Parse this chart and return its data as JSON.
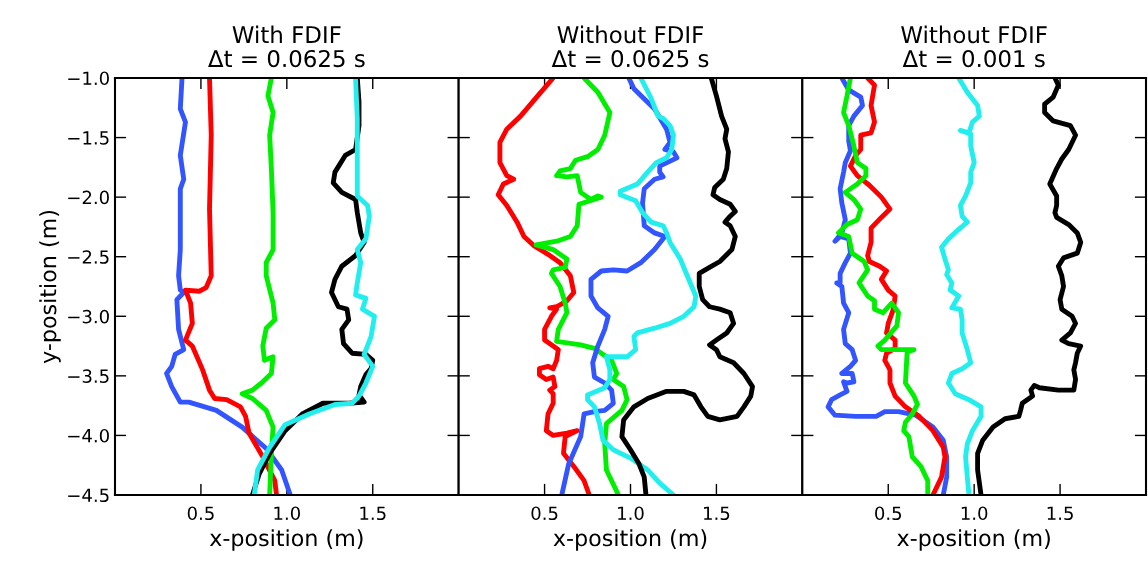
{
  "chart_data": [
    {
      "type": "line",
      "title": "With FDIF\nΔt = 0.0625 s",
      "xlabel": "x-position (m)",
      "ylabel": "y-position (m)",
      "xlim": [
        0,
        2
      ],
      "ylim": [
        -4.5,
        -1.0
      ],
      "xticks": [
        {
          "value": 0.5,
          "label": "0.5"
        },
        {
          "value": 1.0,
          "label": "1.0"
        },
        {
          "value": 1.5,
          "label": "1.5"
        }
      ],
      "yticks": [
        {
          "value": -1.0,
          "label": "−1.0"
        },
        {
          "value": -1.5,
          "label": "−1.5"
        },
        {
          "value": -2.0,
          "label": "−2.0"
        },
        {
          "value": -2.5,
          "label": "−2.5"
        },
        {
          "value": -3.0,
          "label": "−3.0"
        },
        {
          "value": -3.5,
          "label": "−3.5"
        },
        {
          "value": -4.0,
          "label": "−4.0"
        },
        {
          "value": -4.5,
          "label": "−4.5"
        }
      ],
      "series": [
        {
          "color": "#3355ff",
          "x": [
            0.39,
            0.38,
            0.41,
            0.38,
            0.4,
            0.38,
            0.38,
            0.38,
            0.37,
            0.38,
            0.4,
            0.36,
            0.37,
            0.4,
            0.35,
            0.33,
            0.3,
            0.33,
            0.38,
            0.43,
            0.59,
            0.74,
            0.88,
            0.97,
            1.02
          ],
          "values": [
            -1.0,
            -1.26,
            -1.37,
            -1.65,
            -1.85,
            -1.93,
            -2.16,
            -2.44,
            -2.66,
            -2.78,
            -2.8,
            -2.86,
            -3.11,
            -3.28,
            -3.32,
            -3.42,
            -3.48,
            -3.59,
            -3.72,
            -3.72,
            -3.79,
            -3.93,
            -4.11,
            -4.29,
            -4.5
          ]
        },
        {
          "color": "#ff0000",
          "x": [
            0.55,
            0.56,
            0.55,
            0.56,
            0.53,
            0.49,
            0.41,
            0.44,
            0.45,
            0.41,
            0.45,
            0.51,
            0.55,
            0.58,
            0.65,
            0.73,
            0.76,
            0.78,
            0.86,
            0.93,
            0.94
          ],
          "values": [
            -1.0,
            -1.48,
            -2.1,
            -2.66,
            -2.76,
            -2.79,
            -2.78,
            -2.89,
            -3.06,
            -3.2,
            -3.25,
            -3.45,
            -3.62,
            -3.69,
            -3.7,
            -3.76,
            -3.84,
            -3.98,
            -4.18,
            -4.38,
            -4.5
          ]
        },
        {
          "color": "#00ee00",
          "x": [
            0.91,
            0.89,
            0.92,
            0.9,
            0.91,
            0.92,
            0.92,
            0.88,
            0.88,
            0.92,
            0.93,
            0.88,
            0.86,
            0.87,
            0.92,
            0.91,
            0.86,
            0.8,
            0.74,
            0.8,
            0.88,
            0.92,
            0.91,
            0.9
          ],
          "values": [
            -1.0,
            -1.15,
            -1.29,
            -1.48,
            -1.76,
            -2.13,
            -2.44,
            -2.55,
            -2.66,
            -2.89,
            -3.03,
            -3.1,
            -3.25,
            -3.37,
            -3.34,
            -3.48,
            -3.55,
            -3.62,
            -3.65,
            -3.69,
            -3.79,
            -3.93,
            -4.15,
            -4.5
          ]
        },
        {
          "color": "#000000",
          "x": [
            1.41,
            1.42,
            1.42,
            1.4,
            1.34,
            1.28,
            1.27,
            1.32,
            1.4,
            1.41,
            1.43,
            1.45,
            1.4,
            1.32,
            1.28,
            1.26,
            1.3,
            1.35,
            1.36,
            1.32,
            1.33,
            1.38,
            1.46,
            1.5,
            1.49,
            1.46,
            1.43,
            1.42,
            1.45,
            1.36,
            1.21,
            1.09,
            0.99,
            0.9,
            0.84,
            0.8
          ],
          "values": [
            -1.0,
            -1.2,
            -1.4,
            -1.6,
            -1.65,
            -1.79,
            -1.88,
            -1.96,
            -2.02,
            -2.13,
            -2.3,
            -2.38,
            -2.49,
            -2.58,
            -2.69,
            -2.8,
            -2.92,
            -2.94,
            -3.03,
            -3.11,
            -3.23,
            -3.31,
            -3.32,
            -3.37,
            -3.44,
            -3.49,
            -3.59,
            -3.66,
            -3.72,
            -3.73,
            -3.73,
            -3.82,
            -3.96,
            -4.15,
            -4.32,
            -4.5
          ]
        },
        {
          "color": "#22eeee",
          "x": [
            1.4,
            1.41,
            1.41,
            1.41,
            1.47,
            1.48,
            1.46,
            1.41,
            1.43,
            1.41,
            1.4,
            1.46,
            1.44,
            1.51,
            1.49,
            1.45,
            1.5,
            1.46,
            1.42,
            1.38,
            1.28,
            1.13,
            0.99,
            0.9,
            0.83,
            0.81
          ],
          "values": [
            -1.0,
            -1.34,
            -1.76,
            -1.99,
            -2.07,
            -2.16,
            -2.35,
            -2.44,
            -2.55,
            -2.72,
            -2.82,
            -2.85,
            -2.94,
            -3.0,
            -3.17,
            -3.32,
            -3.42,
            -3.56,
            -3.67,
            -3.73,
            -3.74,
            -3.82,
            -3.91,
            -4.1,
            -4.29,
            -4.5
          ]
        }
      ]
    },
    {
      "type": "line",
      "title": "Without FDIF\nΔt = 0.0625 s",
      "xlabel": "x-position (m)",
      "xlim": [
        0,
        2
      ],
      "ylim": [
        -4.5,
        -1.0
      ],
      "tick_labels": "x",
      "xticks": [
        {
          "value": 0.5,
          "label": "0.5"
        },
        {
          "value": 1.0,
          "label": "1.0"
        },
        {
          "value": 1.5,
          "label": "1.5"
        }
      ],
      "yticks": [
        {
          "value": -1.0,
          "label": null
        },
        {
          "value": -1.5,
          "label": null
        },
        {
          "value": -2.0,
          "label": null
        },
        {
          "value": -2.5,
          "label": null
        },
        {
          "value": -3.0,
          "label": null
        },
        {
          "value": -3.5,
          "label": null
        },
        {
          "value": -4.0,
          "label": null
        },
        {
          "value": -4.5,
          "label": null
        }
      ],
      "series": [
        {
          "color": "#ff0000",
          "x": [
            0.55,
            0.46,
            0.36,
            0.28,
            0.24,
            0.24,
            0.28,
            0.32,
            0.26,
            0.23,
            0.28,
            0.34,
            0.38,
            0.44,
            0.52,
            0.59,
            0.65,
            0.67,
            0.63,
            0.57,
            0.53,
            0.57,
            0.54,
            0.5,
            0.5,
            0.55,
            0.58,
            0.57,
            0.55,
            0.52,
            0.47,
            0.47,
            0.51,
            0.55,
            0.56,
            0.53,
            0.55,
            0.55,
            0.52,
            0.51,
            0.55,
            0.63,
            0.69,
            0.62,
            0.61,
            0.67,
            0.73,
            0.76
          ],
          "values": [
            -1.0,
            -1.15,
            -1.32,
            -1.43,
            -1.54,
            -1.71,
            -1.82,
            -1.85,
            -1.89,
            -1.98,
            -2.07,
            -2.21,
            -2.33,
            -2.41,
            -2.48,
            -2.55,
            -2.66,
            -2.8,
            -2.87,
            -2.92,
            -2.93,
            -2.94,
            -3.0,
            -3.11,
            -3.2,
            -3.25,
            -3.28,
            -3.37,
            -3.44,
            -3.42,
            -3.44,
            -3.49,
            -3.53,
            -3.51,
            -3.59,
            -3.62,
            -3.65,
            -3.73,
            -3.82,
            -3.96,
            -4.0,
            -3.98,
            -3.96,
            -4.01,
            -4.15,
            -4.26,
            -4.38,
            -4.5
          ]
        },
        {
          "color": "#00ee00",
          "x": [
            0.73,
            0.81,
            0.88,
            0.85,
            0.81,
            0.75,
            0.68,
            0.65,
            0.59,
            0.57,
            0.63,
            0.69,
            0.71,
            0.77,
            0.81,
            0.83,
            0.7,
            0.69,
            0.65,
            0.57,
            0.45,
            0.55,
            0.63,
            0.62,
            0.55,
            0.54,
            0.59,
            0.62,
            0.63,
            0.58,
            0.57,
            0.71,
            0.79,
            0.89,
            0.92,
            0.9,
            0.96,
            0.98,
            0.95,
            0.86,
            0.85,
            0.86,
            0.93
          ],
          "values": [
            -1.0,
            -1.12,
            -1.29,
            -1.48,
            -1.6,
            -1.66,
            -1.69,
            -1.76,
            -1.78,
            -1.82,
            -1.83,
            -1.82,
            -1.96,
            -2.02,
            -1.99,
            -2.0,
            -2.06,
            -2.24,
            -2.33,
            -2.37,
            -2.4,
            -2.44,
            -2.52,
            -2.59,
            -2.61,
            -2.64,
            -2.75,
            -2.89,
            -2.97,
            -3.11,
            -3.21,
            -3.24,
            -3.27,
            -3.37,
            -3.48,
            -3.53,
            -3.59,
            -3.7,
            -3.79,
            -3.9,
            -4.07,
            -4.29,
            -4.5
          ]
        },
        {
          "color": "#3355ff",
          "x": [
            0.99,
            1.02,
            1.14,
            1.21,
            1.23,
            1.2,
            1.25,
            1.27,
            1.17,
            1.17,
            1.19,
            1.14,
            1.08,
            1.07,
            1.08,
            1.14,
            1.2,
            1.14,
            1.06,
            0.98,
            0.9,
            0.83,
            0.77,
            0.77,
            0.81,
            0.87,
            0.85,
            0.81,
            0.78,
            0.79,
            0.85,
            0.89,
            0.9,
            0.85,
            0.79,
            0.73,
            0.71,
            0.64,
            0.6
          ],
          "values": [
            -1.0,
            -1.09,
            -1.26,
            -1.43,
            -1.54,
            -1.6,
            -1.62,
            -1.67,
            -1.74,
            -1.79,
            -1.83,
            -1.85,
            -1.93,
            -2.05,
            -2.24,
            -2.3,
            -2.33,
            -2.44,
            -2.55,
            -2.62,
            -2.61,
            -2.62,
            -2.69,
            -2.83,
            -2.93,
            -3.0,
            -3.11,
            -3.25,
            -3.39,
            -3.51,
            -3.56,
            -3.62,
            -3.73,
            -3.79,
            -3.8,
            -3.82,
            -4.01,
            -4.24,
            -4.5
          ]
        },
        {
          "color": "#22eeee",
          "x": [
            1.06,
            1.12,
            1.16,
            1.19,
            1.23,
            1.25,
            1.24,
            1.21,
            1.15,
            1.1,
            1.04,
            0.94,
            0.94,
            1.03,
            1.07,
            1.12,
            1.19,
            1.21,
            1.23,
            1.29,
            1.33,
            1.38,
            1.37,
            1.31,
            1.23,
            1.14,
            1.04,
            1.02,
            1.03,
            0.98,
            0.9,
            0.86,
            0.88,
            0.88,
            0.85,
            0.75,
            0.75,
            0.79,
            0.82,
            0.84,
            0.9,
            1.0,
            1.1,
            1.17,
            1.25
          ],
          "values": [
            -1.0,
            -1.17,
            -1.32,
            -1.34,
            -1.4,
            -1.48,
            -1.6,
            -1.67,
            -1.71,
            -1.79,
            -1.89,
            -1.95,
            -1.98,
            -2.03,
            -2.13,
            -2.21,
            -2.24,
            -2.3,
            -2.38,
            -2.52,
            -2.66,
            -2.83,
            -2.92,
            -3.0,
            -3.06,
            -3.1,
            -3.14,
            -3.17,
            -3.28,
            -3.34,
            -3.34,
            -3.34,
            -3.45,
            -3.53,
            -3.6,
            -3.66,
            -3.7,
            -3.76,
            -3.9,
            -4.04,
            -4.12,
            -4.19,
            -4.29,
            -4.4,
            -4.5
          ]
        },
        {
          "color": "#000000",
          "x": [
            1.47,
            1.5,
            1.53,
            1.56,
            1.55,
            1.57,
            1.56,
            1.54,
            1.49,
            1.48,
            1.52,
            1.58,
            1.61,
            1.58,
            1.55,
            1.58,
            1.61,
            1.59,
            1.52,
            1.46,
            1.4,
            1.4,
            1.42,
            1.46,
            1.52,
            1.58,
            1.6,
            1.56,
            1.5,
            1.46,
            1.5,
            1.52,
            1.6,
            1.66,
            1.71,
            1.7,
            1.66,
            1.62,
            1.52,
            1.45,
            1.41,
            1.37,
            1.31,
            1.21,
            1.1,
            1.02,
            0.96,
            0.95,
            1.0,
            1.05,
            1.08,
            1.09
          ],
          "values": [
            -1.0,
            -1.15,
            -1.32,
            -1.43,
            -1.51,
            -1.62,
            -1.76,
            -1.85,
            -1.92,
            -1.98,
            -2.02,
            -2.06,
            -2.12,
            -2.16,
            -2.21,
            -2.24,
            -2.33,
            -2.44,
            -2.54,
            -2.59,
            -2.64,
            -2.75,
            -2.86,
            -2.92,
            -2.94,
            -2.97,
            -3.06,
            -3.14,
            -3.2,
            -3.24,
            -3.28,
            -3.34,
            -3.39,
            -3.48,
            -3.59,
            -3.67,
            -3.76,
            -3.84,
            -3.87,
            -3.84,
            -3.76,
            -3.66,
            -3.63,
            -3.63,
            -3.69,
            -3.76,
            -3.87,
            -4.01,
            -4.12,
            -4.24,
            -4.35,
            -4.5
          ]
        }
      ]
    },
    {
      "type": "line",
      "title": "Without FDIF\nΔt = 0.001 s",
      "xlabel": "x-position (m)",
      "xlim": [
        0,
        2
      ],
      "ylim": [
        -4.5,
        -1.0
      ],
      "tick_labels": "x",
      "xticks": [
        {
          "value": 0.5,
          "label": "0.5"
        },
        {
          "value": 1.0,
          "label": "1.0"
        },
        {
          "value": 1.5,
          "label": "1.5"
        }
      ],
      "yticks": [
        {
          "value": -1.0,
          "label": null
        },
        {
          "value": -1.5,
          "label": null
        },
        {
          "value": -2.0,
          "label": null
        },
        {
          "value": -2.5,
          "label": null
        },
        {
          "value": -3.0,
          "label": null
        },
        {
          "value": -3.5,
          "label": null
        },
        {
          "value": -4.0,
          "label": null
        },
        {
          "value": -4.5,
          "label": null
        }
      ],
      "series": [
        {
          "color": "#3355ff",
          "x": [
            0.23,
            0.27,
            0.34,
            0.35,
            0.3,
            0.27,
            0.27,
            0.28,
            0.25,
            0.24,
            0.22,
            0.23,
            0.25,
            0.23,
            0.19,
            0.22,
            0.27,
            0.28,
            0.25,
            0.22,
            0.22,
            0.2,
            0.23,
            0.24,
            0.27,
            0.24,
            0.25,
            0.29,
            0.31,
            0.28,
            0.23,
            0.29,
            0.3,
            0.26,
            0.24,
            0.26,
            0.22,
            0.17,
            0.15,
            0.19,
            0.31,
            0.43,
            0.48,
            0.56,
            0.66,
            0.76,
            0.82,
            0.84,
            0.84,
            0.82
          ],
          "values": [
            -1.0,
            -1.1,
            -1.16,
            -1.23,
            -1.32,
            -1.4,
            -1.53,
            -1.61,
            -1.71,
            -1.79,
            -1.93,
            -2.05,
            -2.19,
            -2.3,
            -2.37,
            -2.33,
            -2.35,
            -2.47,
            -2.55,
            -2.64,
            -2.72,
            -2.72,
            -2.75,
            -2.89,
            -2.97,
            -3.11,
            -3.23,
            -3.28,
            -3.37,
            -3.42,
            -3.48,
            -3.48,
            -3.55,
            -3.56,
            -3.55,
            -3.63,
            -3.66,
            -3.7,
            -3.76,
            -3.83,
            -3.84,
            -3.84,
            -3.8,
            -3.8,
            -3.83,
            -3.93,
            -4.04,
            -4.18,
            -4.35,
            -4.5
          ]
        },
        {
          "color": "#ff0000",
          "x": [
            0.38,
            0.42,
            0.4,
            0.42,
            0.4,
            0.34,
            0.34,
            0.31,
            0.28,
            0.32,
            0.39,
            0.46,
            0.51,
            0.46,
            0.4,
            0.4,
            0.38,
            0.39,
            0.45,
            0.49,
            0.46,
            0.5,
            0.54,
            0.53,
            0.5,
            0.49,
            0.54,
            0.54,
            0.49,
            0.48,
            0.51,
            0.51,
            0.54,
            0.6,
            0.68,
            0.76,
            0.82,
            0.83,
            0.81,
            0.76
          ],
          "values": [
            -1.0,
            -1.06,
            -1.23,
            -1.37,
            -1.46,
            -1.48,
            -1.6,
            -1.65,
            -1.74,
            -1.82,
            -1.9,
            -2.0,
            -2.1,
            -2.17,
            -2.26,
            -2.38,
            -2.49,
            -2.54,
            -2.58,
            -2.62,
            -2.69,
            -2.78,
            -2.83,
            -2.94,
            -3.06,
            -3.14,
            -3.2,
            -3.27,
            -3.31,
            -3.37,
            -3.45,
            -3.56,
            -3.67,
            -3.76,
            -3.84,
            -3.96,
            -4.1,
            -4.18,
            -4.35,
            -4.5
          ]
        },
        {
          "color": "#00ee00",
          "x": [
            0.28,
            0.26,
            0.24,
            0.27,
            0.3,
            0.32,
            0.37,
            0.37,
            0.32,
            0.25,
            0.3,
            0.34,
            0.32,
            0.26,
            0.21,
            0.27,
            0.29,
            0.36,
            0.38,
            0.33,
            0.38,
            0.42,
            0.42,
            0.47,
            0.52,
            0.56,
            0.55,
            0.48,
            0.44,
            0.46,
            0.56,
            0.65,
            0.61,
            0.6,
            0.65,
            0.67,
            0.64,
            0.6,
            0.59,
            0.62,
            0.64,
            0.69,
            0.73,
            0.73
          ],
          "values": [
            -1.0,
            -1.15,
            -1.29,
            -1.4,
            -1.57,
            -1.71,
            -1.76,
            -1.82,
            -1.89,
            -1.96,
            -2.02,
            -2.1,
            -2.19,
            -2.23,
            -2.3,
            -2.33,
            -2.47,
            -2.54,
            -2.61,
            -2.72,
            -2.83,
            -2.87,
            -2.94,
            -2.97,
            -2.89,
            -2.97,
            -3.08,
            -3.2,
            -3.25,
            -3.28,
            -3.28,
            -3.28,
            -3.3,
            -3.56,
            -3.67,
            -3.74,
            -3.82,
            -3.89,
            -3.96,
            -4.01,
            -4.18,
            -4.26,
            -4.38,
            -4.5
          ]
        },
        {
          "color": "#22eeee",
          "x": [
            0.91,
            0.96,
            1.02,
            1.03,
            0.99,
            0.97,
            0.92,
            0.98,
            0.98,
            1.0,
            0.98,
            0.98,
            0.95,
            0.92,
            0.93,
            0.96,
            0.91,
            0.85,
            0.81,
            0.83,
            0.85,
            0.84,
            0.87,
            0.86,
            0.91,
            0.87,
            0.92,
            0.93,
            0.93,
            0.96,
            0.98,
            0.93,
            0.87,
            0.85,
            0.89,
            0.97,
            1.04,
            1.04,
            0.99,
            0.96,
            0.95,
            0.96,
            0.97
          ],
          "values": [
            -1.0,
            -1.12,
            -1.23,
            -1.32,
            -1.37,
            -1.46,
            -1.44,
            -1.47,
            -1.57,
            -1.71,
            -1.79,
            -1.88,
            -1.99,
            -2.07,
            -2.16,
            -2.21,
            -2.27,
            -2.35,
            -2.42,
            -2.52,
            -2.61,
            -2.65,
            -2.72,
            -2.78,
            -2.83,
            -2.93,
            -2.94,
            -3.03,
            -3.14,
            -3.28,
            -3.39,
            -3.44,
            -3.48,
            -3.56,
            -3.65,
            -3.7,
            -3.76,
            -3.84,
            -3.96,
            -4.07,
            -4.18,
            -4.35,
            -4.5
          ]
        },
        {
          "color": "#000000",
          "x": [
            1.47,
            1.49,
            1.46,
            1.41,
            1.41,
            1.46,
            1.56,
            1.59,
            1.55,
            1.51,
            1.48,
            1.44,
            1.48,
            1.48,
            1.47,
            1.48,
            1.55,
            1.6,
            1.62,
            1.6,
            1.52,
            1.49,
            1.51,
            1.52,
            1.5,
            1.51,
            1.57,
            1.59,
            1.56,
            1.51,
            1.55,
            1.62,
            1.6,
            1.59,
            1.58,
            1.59,
            1.58,
            1.49,
            1.38,
            1.35,
            1.33,
            1.34,
            1.28,
            1.27,
            1.26,
            1.18,
            1.11,
            1.05,
            1.02,
            1.02,
            1.04
          ],
          "values": [
            -1.0,
            -1.06,
            -1.16,
            -1.22,
            -1.29,
            -1.36,
            -1.4,
            -1.48,
            -1.6,
            -1.68,
            -1.76,
            -1.89,
            -1.99,
            -2.07,
            -2.13,
            -2.17,
            -2.23,
            -2.3,
            -2.38,
            -2.47,
            -2.51,
            -2.58,
            -2.66,
            -2.75,
            -2.86,
            -2.94,
            -3.0,
            -3.06,
            -3.14,
            -3.2,
            -3.23,
            -3.25,
            -3.31,
            -3.39,
            -3.45,
            -3.53,
            -3.62,
            -3.62,
            -3.6,
            -3.58,
            -3.62,
            -3.67,
            -3.73,
            -3.79,
            -3.84,
            -3.86,
            -3.93,
            -4.04,
            -4.15,
            -4.29,
            -4.5
          ]
        }
      ]
    }
  ]
}
